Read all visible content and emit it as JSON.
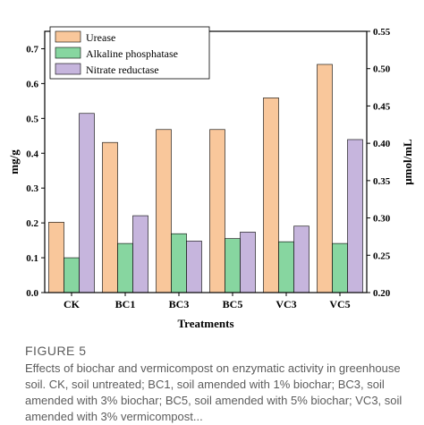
{
  "chart_data": {
    "type": "bar",
    "categories": [
      "CK",
      "BC1",
      "BC3",
      "BC5",
      "VC3",
      "VC5"
    ],
    "series": [
      {
        "name": "Urease",
        "axis": "left",
        "color": "#f9c79b",
        "values": [
          0.202,
          0.431,
          0.468,
          0.468,
          0.559,
          0.655
        ]
      },
      {
        "name": "Alkaline phosphatase",
        "axis": "left",
        "color": "#87d6a0",
        "values": [
          0.1,
          0.141,
          0.169,
          0.155,
          0.146,
          0.141
        ]
      },
      {
        "name": "Nitrate reductase",
        "axis": "right",
        "color": "#c6b5dd",
        "values": [
          0.44,
          0.303,
          0.269,
          0.281,
          0.289,
          0.405
        ]
      }
    ],
    "xlabel": "Treatments",
    "ylabel_left": "mg/g",
    "ylabel_right": "μmol/mL",
    "ylim_left": [
      0.0,
      0.75
    ],
    "ylim_right": [
      0.2,
      0.55
    ],
    "yticks_left": [
      "0.0",
      "0.1",
      "0.2",
      "0.3",
      "0.4",
      "0.5",
      "0.6",
      "0.7"
    ],
    "yticks_right": [
      "0.20",
      "0.25",
      "0.30",
      "0.35",
      "0.40",
      "0.45",
      "0.50",
      "0.55"
    ],
    "legend_position": "top-left",
    "grid": false
  },
  "caption": {
    "label": "FIGURE 5",
    "text": "Effects of biochar and vermicompost on enzymatic activity in greenhouse soil. CK, soil untreated; BC1, soil amended with 1% biochar; BC3, soil amended with 3% biochar; BC5, soil amended with 5% biochar; VC3, soil amended with 3% vermicompost..."
  }
}
